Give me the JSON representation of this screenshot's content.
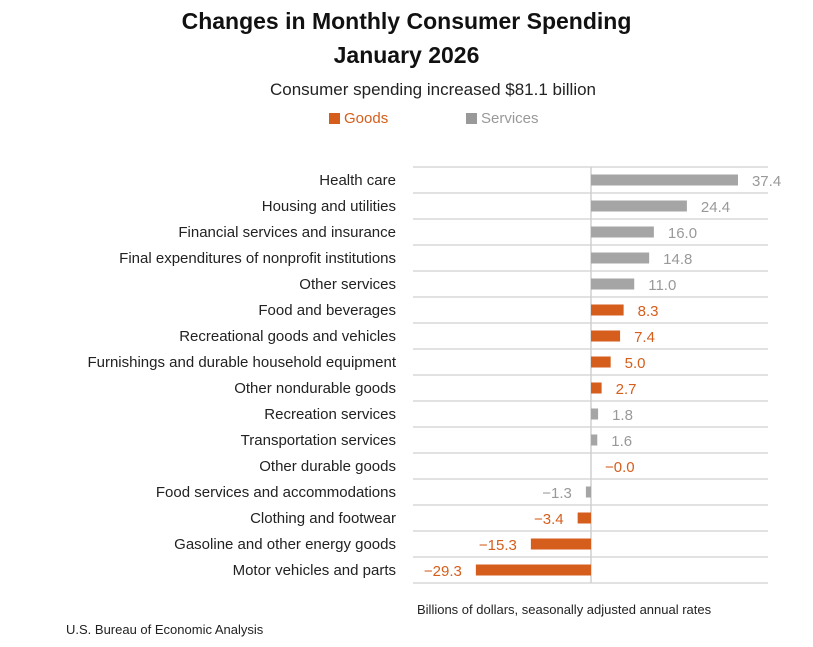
{
  "title_line1": "Changes in Monthly Consumer Spending",
  "title_line2": "January 2026",
  "subtitle": "Consumer spending increased $81.1 billion",
  "unit_note": "Billions of dollars, seasonally adjusted annual rates",
  "source": "U.S. Bureau of Economic Analysis",
  "colors": {
    "Goods": "#d55e1c",
    "Services": "#a5a5a5",
    "grid": "#d9d9d9"
  },
  "chart_data": {
    "type": "bar",
    "orientation": "horizontal",
    "title": "Changes in Monthly Consumer Spending January 2026",
    "legend": [
      "Goods",
      "Services"
    ],
    "legend_placement": "top",
    "categories": [
      "Health care",
      "Housing and utilities",
      "Financial services and insurance",
      "Final expenditures of nonprofit institutions",
      "Other services",
      "Food and beverages",
      "Recreational goods and vehicles",
      "Furnishings and durable household equipment",
      "Other nondurable goods",
      "Recreation services",
      "Transportation services",
      "Other durable goods",
      "Food services and accommodations",
      "Clothing and footwear",
      "Gasoline and other energy goods",
      "Motor vehicles and parts"
    ],
    "values": [
      37.4,
      24.4,
      16.0,
      14.8,
      11.0,
      8.3,
      7.4,
      5.0,
      2.7,
      1.8,
      1.6,
      -0.0,
      -1.3,
      -3.4,
      -15.3,
      -29.3
    ],
    "labels": [
      "37.4",
      "24.4",
      "16.0",
      "14.8",
      "11.0",
      "8.3",
      "7.4",
      "5.0",
      "2.7",
      "1.8",
      "1.6",
      "−0.0",
      "−1.3",
      "−3.4",
      "−15.3",
      "−29.3"
    ],
    "group": [
      "Services",
      "Services",
      "Services",
      "Services",
      "Services",
      "Goods",
      "Goods",
      "Goods",
      "Goods",
      "Services",
      "Services",
      "Goods",
      "Services",
      "Goods",
      "Goods",
      "Goods"
    ],
    "xlabel": "Billions of dollars, seasonally adjusted annual rates",
    "xlim": [
      -45.5,
      45
    ],
    "grid": true
  }
}
